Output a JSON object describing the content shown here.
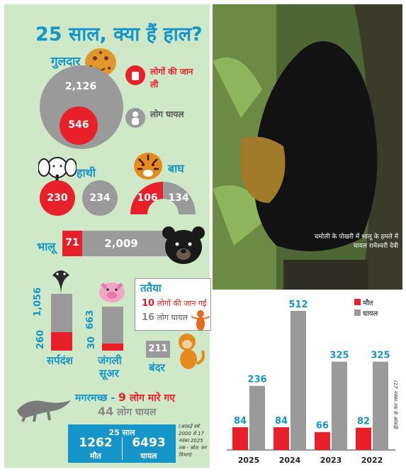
{
  "headline": "25 साल, क्या हैं हाल?",
  "legend": {
    "deaths_label": "लोगों की जान ली",
    "injured_label": "लोग घायल"
  },
  "animals": {
    "leopard": {
      "name": "गुलदार",
      "deaths": "546",
      "injured": "2,126"
    },
    "elephant": {
      "name": "हाथी",
      "deaths": "230",
      "injured": "234"
    },
    "tiger": {
      "name": "बाघ",
      "deaths": "106",
      "injured": "134"
    },
    "bear": {
      "name": "भालू",
      "deaths": "71",
      "injured": "2,009"
    },
    "snake": {
      "name": "सर्पदंश",
      "deaths": "260",
      "injured": "1,056"
    },
    "boar": {
      "name_line1": "जंगली",
      "name_line2": "सूअर",
      "deaths": "30",
      "injured": "663"
    },
    "monkey": {
      "name": "बंदर",
      "injured": "211"
    },
    "wasp": {
      "name": "ततैया",
      "deaths_num": "10",
      "deaths_text": "लोगों की जान गई",
      "injured_num": "16",
      "injured_text": "लोग घायल"
    },
    "crocodile": {
      "line1_name": "मगरमच्छ -",
      "line1_num": "9",
      "line1_text": "लोग मारे गए",
      "line2_num": "44",
      "line2_text": "लोग घायल"
    }
  },
  "summary": {
    "title": "25 साल",
    "deaths_value": "1262",
    "deaths_label": "मौत",
    "injured_value": "6493",
    "injured_label": "घायल"
  },
  "note": "(आंकड़ें वर्ष 2000 से 17 नवंबर 2025 तक - स्रोत: वन विभाग)",
  "photo_caption": "चमोली के पोखरी में भालू के हमले में घायल रामेश्वरी देवी",
  "colors": {
    "accent_red": "#e8202a",
    "accent_grey": "#9a9a9a",
    "teal": "#1595c8",
    "panel_green": "#cfe8c8"
  },
  "chart_data": {
    "type": "bar",
    "categories": [
      "2025",
      "2024",
      "2023",
      "2022"
    ],
    "series": [
      {
        "name": "मौत",
        "values": [
          84,
          84,
          66,
          82
        ],
        "color": "#e8202a"
      },
      {
        "name": "घायल",
        "values": [
          236,
          512,
          325,
          325
        ],
        "color": "#9a9a9a"
      }
    ],
    "ylim": [
      0,
      512
    ],
    "annotation": "(17 नवंबर तक के आंकड़े)"
  }
}
